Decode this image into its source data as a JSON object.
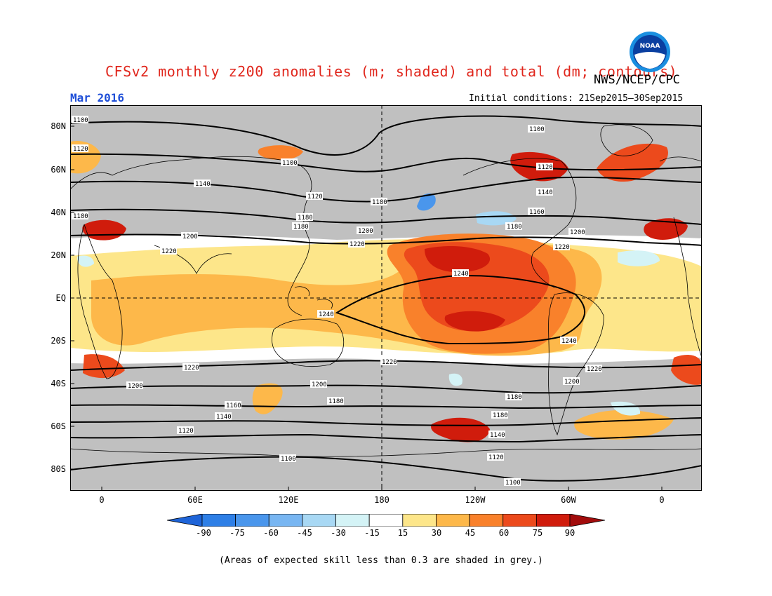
{
  "header": {
    "title": "CFSv2 monthly z200 anomalies (m; shaded) and total (dm; contours)",
    "agency": "NWS/NCEP/CPC",
    "month": "Mar 2016",
    "initial_conditions": "Initial conditions: 21Sep2015–30Sep2015",
    "logo_text": "NOAA"
  },
  "map": {
    "lat_labels": [
      "80N",
      "60N",
      "40N",
      "20N",
      "EQ",
      "20S",
      "40S",
      "60S",
      "80S"
    ],
    "lon_labels": [
      "0",
      "60E",
      "120E",
      "180",
      "120W",
      "60W",
      "0"
    ],
    "contour_labels": [
      "1100",
      "1120",
      "1140",
      "1160",
      "1180",
      "1200",
      "1220",
      "1240"
    ],
    "skill_mask_color": "#c0c0c0"
  },
  "colorbar": {
    "labels": [
      "-90",
      "-75",
      "-60",
      "-45",
      "-30",
      "-15",
      "15",
      "30",
      "45",
      "60",
      "75",
      "90"
    ],
    "colors": [
      "#1e64d8",
      "#2e7fe6",
      "#4a96ec",
      "#78b6f2",
      "#a8d8f4",
      "#d4f3f6",
      "#ffffff",
      "#fde68a",
      "#fdb84a",
      "#f9812b",
      "#ec4a1c",
      "#d01c0c",
      "#a20c0c"
    ]
  },
  "footnote": "(Areas of expected skill less than 0.3 are shaded in grey.)"
}
